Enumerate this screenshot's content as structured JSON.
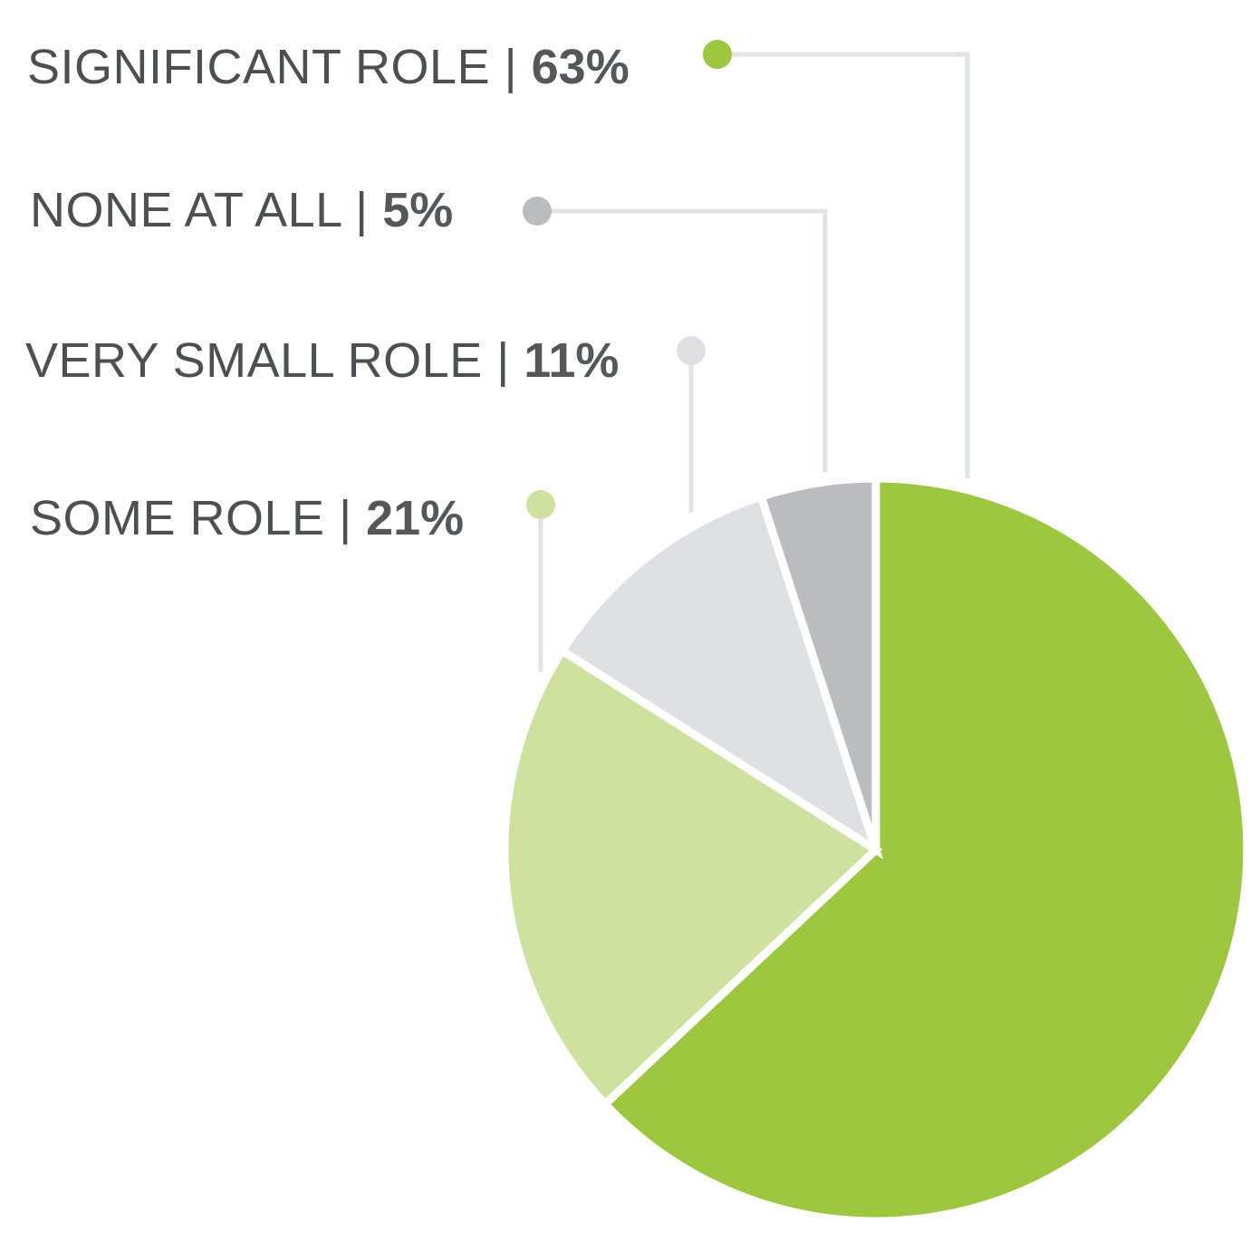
{
  "chart_data": {
    "type": "pie",
    "title": "",
    "separator": "|",
    "slices": [
      {
        "label": "SIGNIFICANT ROLE",
        "value": 63,
        "display": "63%",
        "color": "#9cc73f"
      },
      {
        "label": "SOME ROLE",
        "value": 21,
        "display": "21%",
        "color": "#cfe19f"
      },
      {
        "label": "VERY SMALL ROLE",
        "value": 11,
        "display": "11%",
        "color": "#dfe0e2"
      },
      {
        "label": "NONE AT ALL",
        "value": 5,
        "display": "5%",
        "color": "#bbbcbe"
      }
    ],
    "legend_placement": "top-left"
  }
}
